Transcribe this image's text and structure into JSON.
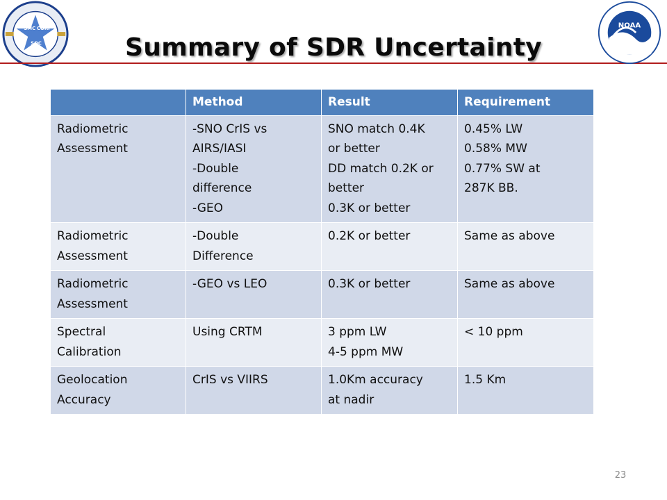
{
  "slide": {
    "title": "Summary of SDR Uncertainty",
    "page_number": "23"
  },
  "logos": {
    "left_text": "NOAA NESDIS STAR",
    "left_label_smc": "SMC",
    "left_label_corp": "CORP",
    "left_label_soc": "SOC",
    "right_badge": "NOAA"
  },
  "table": {
    "headers": [
      "",
      "Method",
      "Result",
      "Requirement"
    ],
    "rows": [
      {
        "assessment": [
          "Radiometric",
          "Assessment"
        ],
        "method": [
          "-SNO CrIS vs",
          "AIRS/IASI",
          "-Double",
          "difference",
          "-GEO"
        ],
        "result": [
          "SNO match 0.4K",
          "or better",
          "DD match 0.2K or",
          "better",
          "0.3K or better"
        ],
        "requirement": [
          "0.45% LW",
          "0.58% MW",
          "0.77% SW at",
          "287K BB."
        ]
      },
      {
        "assessment": [
          "Radiometric",
          "Assessment"
        ],
        "method": [
          "-Double",
          "Difference"
        ],
        "result": [
          "0.2K or better"
        ],
        "requirement": [
          "Same as above"
        ]
      },
      {
        "assessment": [
          "Radiometric",
          "Assessment"
        ],
        "method": [
          "-GEO vs LEO"
        ],
        "result": [
          "0.3K or better"
        ],
        "requirement": [
          "Same as above"
        ]
      },
      {
        "assessment": [
          "Spectral",
          "Calibration"
        ],
        "method": [
          "Using CRTM"
        ],
        "result": [
          "3 ppm LW",
          "4-5 ppm MW"
        ],
        "requirement": [
          "< 10 ppm"
        ]
      },
      {
        "assessment": [
          "Geolocation",
          "Accuracy"
        ],
        "method": [
          "CrIS vs VIIRS"
        ],
        "result": [
          "1.0Km accuracy",
          "at nadir"
        ],
        "requirement": [
          "1.5 Km"
        ]
      }
    ]
  },
  "colors": {
    "header_fill": "#4f81bd",
    "row_dark": "#d0d8e8",
    "row_light": "#e9edf4",
    "rule": "#b11c1c",
    "noaa_blue": "#1a4a9c"
  }
}
